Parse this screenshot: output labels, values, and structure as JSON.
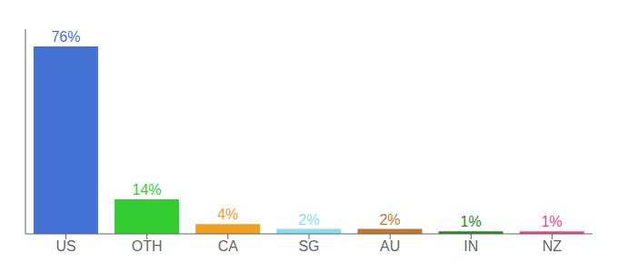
{
  "chart_data": {
    "type": "bar",
    "categories": [
      "US",
      "OTH",
      "CA",
      "SG",
      "AU",
      "IN",
      "NZ"
    ],
    "values": [
      76,
      14,
      4,
      2,
      2,
      1,
      1
    ],
    "value_labels": [
      "76%",
      "14%",
      "4%",
      "2%",
      "2%",
      "1%",
      "1%"
    ],
    "colors": [
      "#4472d4",
      "#33cc33",
      "#f0a020",
      "#88ddee",
      "#c07830",
      "#228822",
      "#ee4488"
    ],
    "ylim": [
      0,
      83
    ],
    "data_labels": true,
    "tick_labels": "x",
    "grid": false
  }
}
